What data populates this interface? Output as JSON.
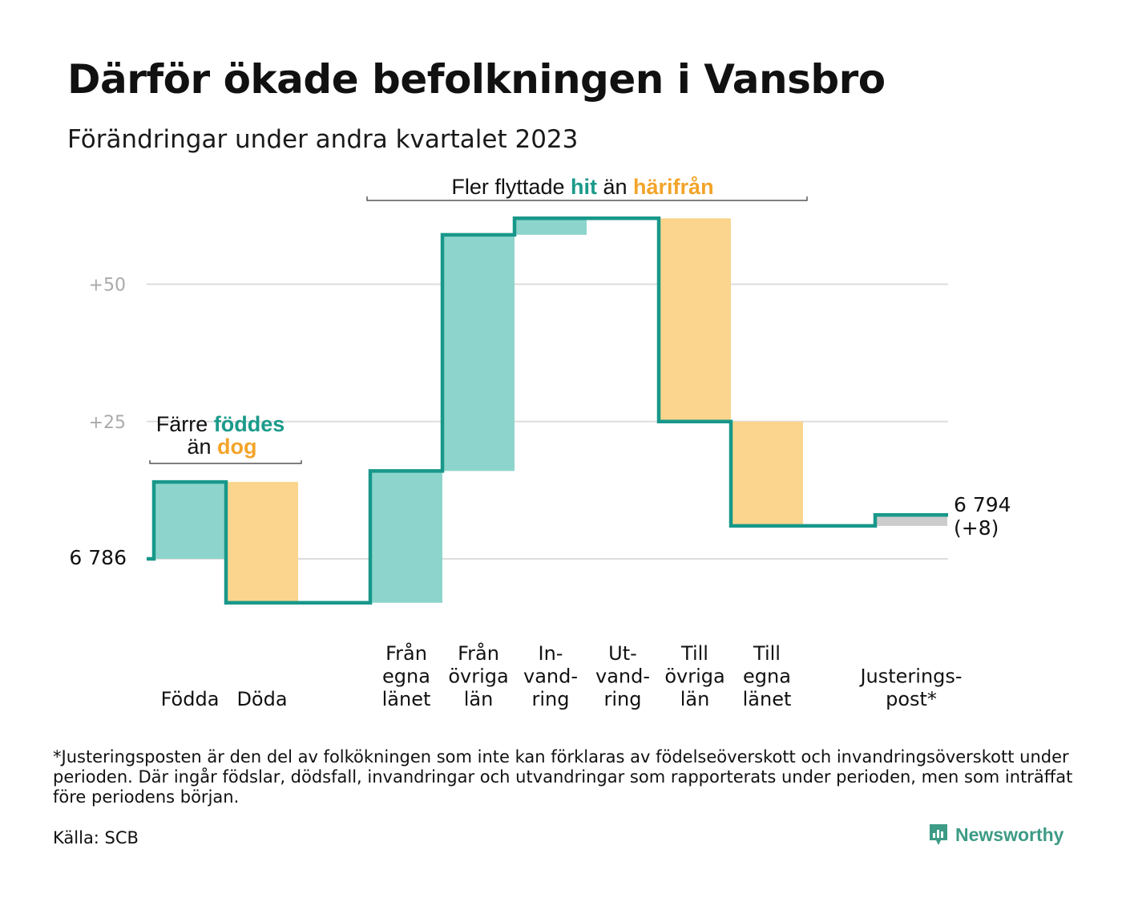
{
  "title": "Därför ökade befolkningen i Vansbro",
  "subtitle": "Förändringar under andra kvartalet 2023",
  "chart_data": {
    "type": "waterfall",
    "start_label": "6  786",
    "end_label_lines": [
      "6 794",
      "(+8)"
    ],
    "yticks": [
      {
        "value": 0,
        "label": ""
      },
      {
        "value": 25,
        "label": "+25"
      },
      {
        "value": 50,
        "label": "+50"
      }
    ],
    "ylim": [
      -9,
      62
    ],
    "categories": [
      {
        "lines": [
          "Födda"
        ],
        "change": 14,
        "kind": "in"
      },
      {
        "lines": [
          "Döda"
        ],
        "change": -22,
        "kind": "out"
      },
      {
        "lines": [
          ""
        ],
        "change": 0,
        "kind": "none"
      },
      {
        "lines": [
          "Från",
          "egna",
          "länet"
        ],
        "change": 24,
        "kind": "in"
      },
      {
        "lines": [
          "Från",
          "övriga",
          "län"
        ],
        "change": 43,
        "kind": "in"
      },
      {
        "lines": [
          "In-",
          "vand-",
          "ring"
        ],
        "change": 3,
        "kind": "in"
      },
      {
        "lines": [
          "Ut-",
          "vand-",
          "ring"
        ],
        "change": 0,
        "kind": "out"
      },
      {
        "lines": [
          "Till",
          "övriga",
          "län"
        ],
        "change": -37,
        "kind": "out"
      },
      {
        "lines": [
          "Till",
          "egna",
          "länet"
        ],
        "change": -19,
        "kind": "out"
      },
      {
        "lines": [
          ""
        ],
        "change": 0,
        "kind": "none"
      },
      {
        "lines": [
          "Justerings-",
          "post*"
        ],
        "change": 2,
        "kind": "adj"
      }
    ],
    "annotations": {
      "births_deaths": {
        "pre": "Färre ",
        "hi1": "föddes",
        "mid": "än ",
        "hi2": "dog"
      },
      "migration": {
        "pre": "Fler flyttade ",
        "hi1": "hit",
        "mid": " än ",
        "hi2": "härifrån"
      }
    },
    "colors": {
      "in": "#8dd5cc",
      "out": "#fbd58d",
      "adj": "#cccccc",
      "line": "#18988a",
      "grid": "#dddddd",
      "accent_in": "#1b9a8a",
      "accent_out": "#f3a42a",
      "tick": "#aaaaaa"
    }
  },
  "footnote": "*Justeringsposten är den del av folkökningen som inte kan förklaras av födelseöverskott och invandringsöverskott under perioden. Där ingår födslar, dödsfall, invandringar och utvandringar som rapporterats under perioden, men som inträffat före periodens början.",
  "source": "Källa: SCB",
  "brand": {
    "name": "Newsworthy",
    "icon": "newsworthy-logo-icon",
    "color": "#3d9b86"
  }
}
